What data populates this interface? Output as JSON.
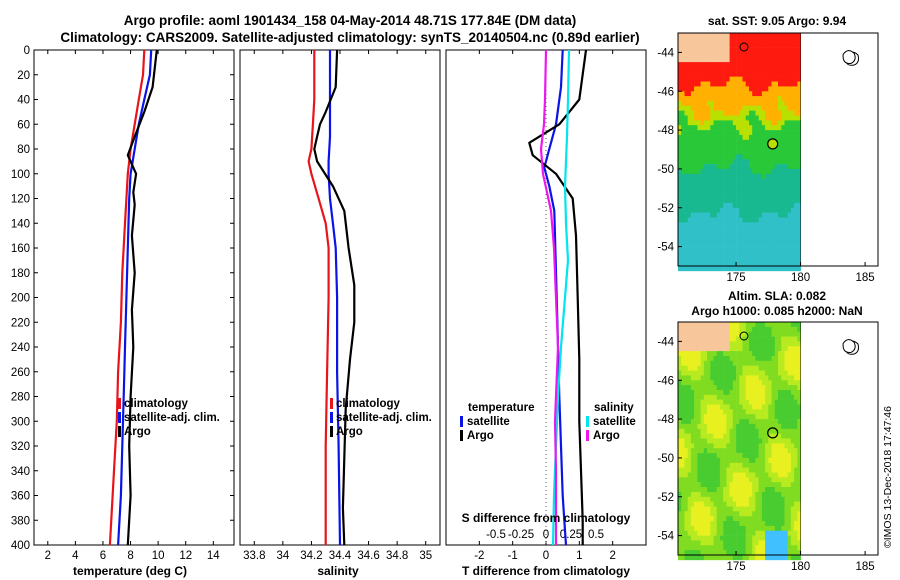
{
  "title_line1": "Argo profile: aoml 1901434_158 04-May-2014 48.71S 177.84E (DM data)",
  "title_line2": "Climatology: CARS2009. Satellite-adjusted climatology: synTS_20140504.nc (0.89d earlier)",
  "credit": "©IMOS 13-Dec-2018 17:47:46",
  "colors": {
    "climatology": "#e8141b",
    "satellite": "#0a14e6",
    "argo": "#000000",
    "t_satellite": "#00e5ee",
    "t_argo": "#ee18ee",
    "land": "#f7c79b"
  },
  "chart_data": [
    {
      "type": "line",
      "title": "",
      "xlabel": "temperature (deg C)",
      "ylabel": "",
      "xlim": [
        1,
        15.5
      ],
      "ylim": [
        400,
        0
      ],
      "xticks": [
        2,
        4,
        6,
        8,
        10,
        12,
        14
      ],
      "yticks": [
        0,
        20,
        40,
        60,
        80,
        100,
        120,
        140,
        160,
        180,
        200,
        220,
        240,
        260,
        280,
        300,
        320,
        340,
        360,
        380,
        400
      ],
      "series": [
        {
          "name": "climatology",
          "color": "#e8141b",
          "x": [
            9.0,
            8.9,
            8.6,
            8.3,
            8.0,
            7.8,
            7.6,
            7.4,
            7.3,
            7.1,
            7.0,
            6.8,
            6.5
          ],
          "y": [
            0,
            20,
            40,
            60,
            80,
            100,
            140,
            180,
            220,
            260,
            300,
            340,
            400
          ]
        },
        {
          "name": "satellite-adj. clim.",
          "color": "#0a14e6",
          "x": [
            9.5,
            9.4,
            9.0,
            8.6,
            8.3,
            8.0,
            7.9,
            7.8,
            7.7,
            7.6,
            7.5,
            7.4,
            7.3,
            7.1
          ],
          "y": [
            0,
            20,
            40,
            60,
            80,
            100,
            120,
            160,
            200,
            240,
            280,
            320,
            360,
            400
          ]
        },
        {
          "name": "Argo",
          "color": "#000000",
          "x": [
            9.9,
            9.6,
            9.0,
            8.3,
            7.8,
            8.4,
            8.2,
            8.3,
            8.1,
            8.3,
            8.1,
            8.2,
            8.0,
            7.9,
            8.0,
            7.8
          ],
          "y": [
            0,
            30,
            50,
            70,
            85,
            100,
            115,
            125,
            150,
            180,
            210,
            240,
            280,
            320,
            360,
            400
          ]
        }
      ],
      "legend": [
        "climatology",
        "satellite-adj. clim.",
        "Argo"
      ]
    },
    {
      "type": "line",
      "title": "",
      "xlabel": "salinity",
      "ylabel": "",
      "xlim": [
        33.7,
        35.1
      ],
      "ylim": [
        400,
        0
      ],
      "xticks": [
        33.8,
        34,
        34.2,
        34.4,
        34.6,
        34.8,
        35
      ],
      "series": [
        {
          "name": "climatology",
          "color": "#e8141b",
          "x": [
            34.22,
            34.22,
            34.21,
            34.2,
            34.18,
            34.2,
            34.25,
            34.3,
            34.32,
            34.32,
            34.31,
            34.3,
            34.3
          ],
          "y": [
            0,
            40,
            60,
            80,
            90,
            100,
            120,
            140,
            160,
            200,
            260,
            320,
            400
          ]
        },
        {
          "name": "satellite-adj. clim.",
          "color": "#0a14e6",
          "x": [
            34.33,
            34.33,
            34.33,
            34.32,
            34.32,
            34.33,
            34.35,
            34.37,
            34.38,
            34.38,
            34.39,
            34.4
          ],
          "y": [
            0,
            40,
            70,
            90,
            100,
            120,
            140,
            160,
            200,
            260,
            320,
            400
          ]
        },
        {
          "name": "Argo",
          "color": "#000000",
          "x": [
            34.38,
            34.37,
            34.3,
            34.26,
            34.24,
            34.22,
            34.24,
            34.35,
            34.43,
            34.46,
            34.5,
            34.5,
            34.47,
            34.44,
            34.43,
            34.42,
            34.43
          ],
          "y": [
            0,
            30,
            50,
            60,
            70,
            80,
            90,
            110,
            130,
            160,
            190,
            220,
            250,
            290,
            330,
            370,
            400
          ]
        }
      ],
      "legend": [
        "climatology",
        "satellite-adj. clim.",
        "Argo"
      ]
    },
    {
      "type": "line",
      "title": "",
      "xlabel": "T difference from climatology",
      "x2label": "S difference from climatology",
      "ylabel": "",
      "xlim": [
        -3,
        3
      ],
      "ylim": [
        400,
        0
      ],
      "xticks": [
        -2,
        -1,
        0,
        1,
        2
      ],
      "x2ticks": [
        -0.5,
        -0.25,
        0,
        0.25,
        0.5
      ],
      "series": [
        {
          "name": "temperature satellite",
          "color": "#0a14e6",
          "x": [
            0.5,
            0.45,
            0.3,
            0.1,
            -0.05,
            0.1,
            0.25,
            0.3,
            0.35,
            0.4,
            0.45,
            0.5,
            0.55,
            0.6
          ],
          "y": [
            0,
            30,
            60,
            80,
            95,
            110,
            130,
            180,
            230,
            280,
            320,
            360,
            380,
            400
          ]
        },
        {
          "name": "temperature Argo",
          "color": "#000000",
          "x": [
            1.2,
            1.0,
            0.4,
            -0.5,
            -0.4,
            0.3,
            0.8,
            0.9,
            0.95,
            1.0,
            1.0,
            1.05,
            1.1,
            1.1
          ],
          "y": [
            0,
            40,
            60,
            75,
            85,
            100,
            120,
            150,
            200,
            250,
            300,
            340,
            380,
            400
          ]
        },
        {
          "name": "salinity satellite",
          "color": "#00e5ee",
          "x": [
            0.23,
            0.22,
            0.21,
            0.2,
            0.19,
            0.2,
            0.22,
            0.19,
            0.15,
            0.12,
            0.1,
            0.08,
            0.07
          ],
          "y": [
            0,
            40,
            70,
            90,
            110,
            140,
            170,
            200,
            240,
            280,
            320,
            360,
            400
          ]
        },
        {
          "name": "salinity Argo",
          "color": "#ee18ee",
          "x": [
            0.0,
            -0.01,
            -0.02,
            -0.05,
            -0.03,
            0.05,
            0.08,
            0.1,
            0.12,
            0.1,
            0.09,
            0.1,
            0.1,
            0.1
          ],
          "y": [
            0,
            40,
            60,
            80,
            100,
            130,
            160,
            200,
            240,
            280,
            300,
            340,
            380,
            400
          ]
        }
      ],
      "legend_temperature": {
        "title": "temperature",
        "items": [
          "satellite",
          "Argo"
        ]
      },
      "legend_salinity": {
        "title": "salinity",
        "items": [
          "satellite",
          "Argo"
        ]
      }
    },
    {
      "type": "heatmap",
      "title": "sat. SST: 9.05 Argo: 9.94",
      "xlim": [
        170.5,
        186
      ],
      "ylim": [
        -55,
        -43
      ],
      "xticks": [
        175,
        180,
        185
      ],
      "yticks": [
        -44,
        -46,
        -48,
        -50,
        -52,
        -54
      ],
      "argo_position": {
        "lon": 177.84,
        "lat": -48.71
      }
    },
    {
      "type": "heatmap",
      "title": "Altim. SLA: 0.082",
      "subtitle": "Argo h1000: 0.085 h2000: NaN",
      "xlim": [
        170.5,
        186
      ],
      "ylim": [
        -55,
        -43
      ],
      "xticks": [
        175,
        180,
        185
      ],
      "yticks": [
        -44,
        -46,
        -48,
        -50,
        -52,
        -54
      ],
      "argo_position": {
        "lon": 177.84,
        "lat": -48.71
      }
    }
  ]
}
